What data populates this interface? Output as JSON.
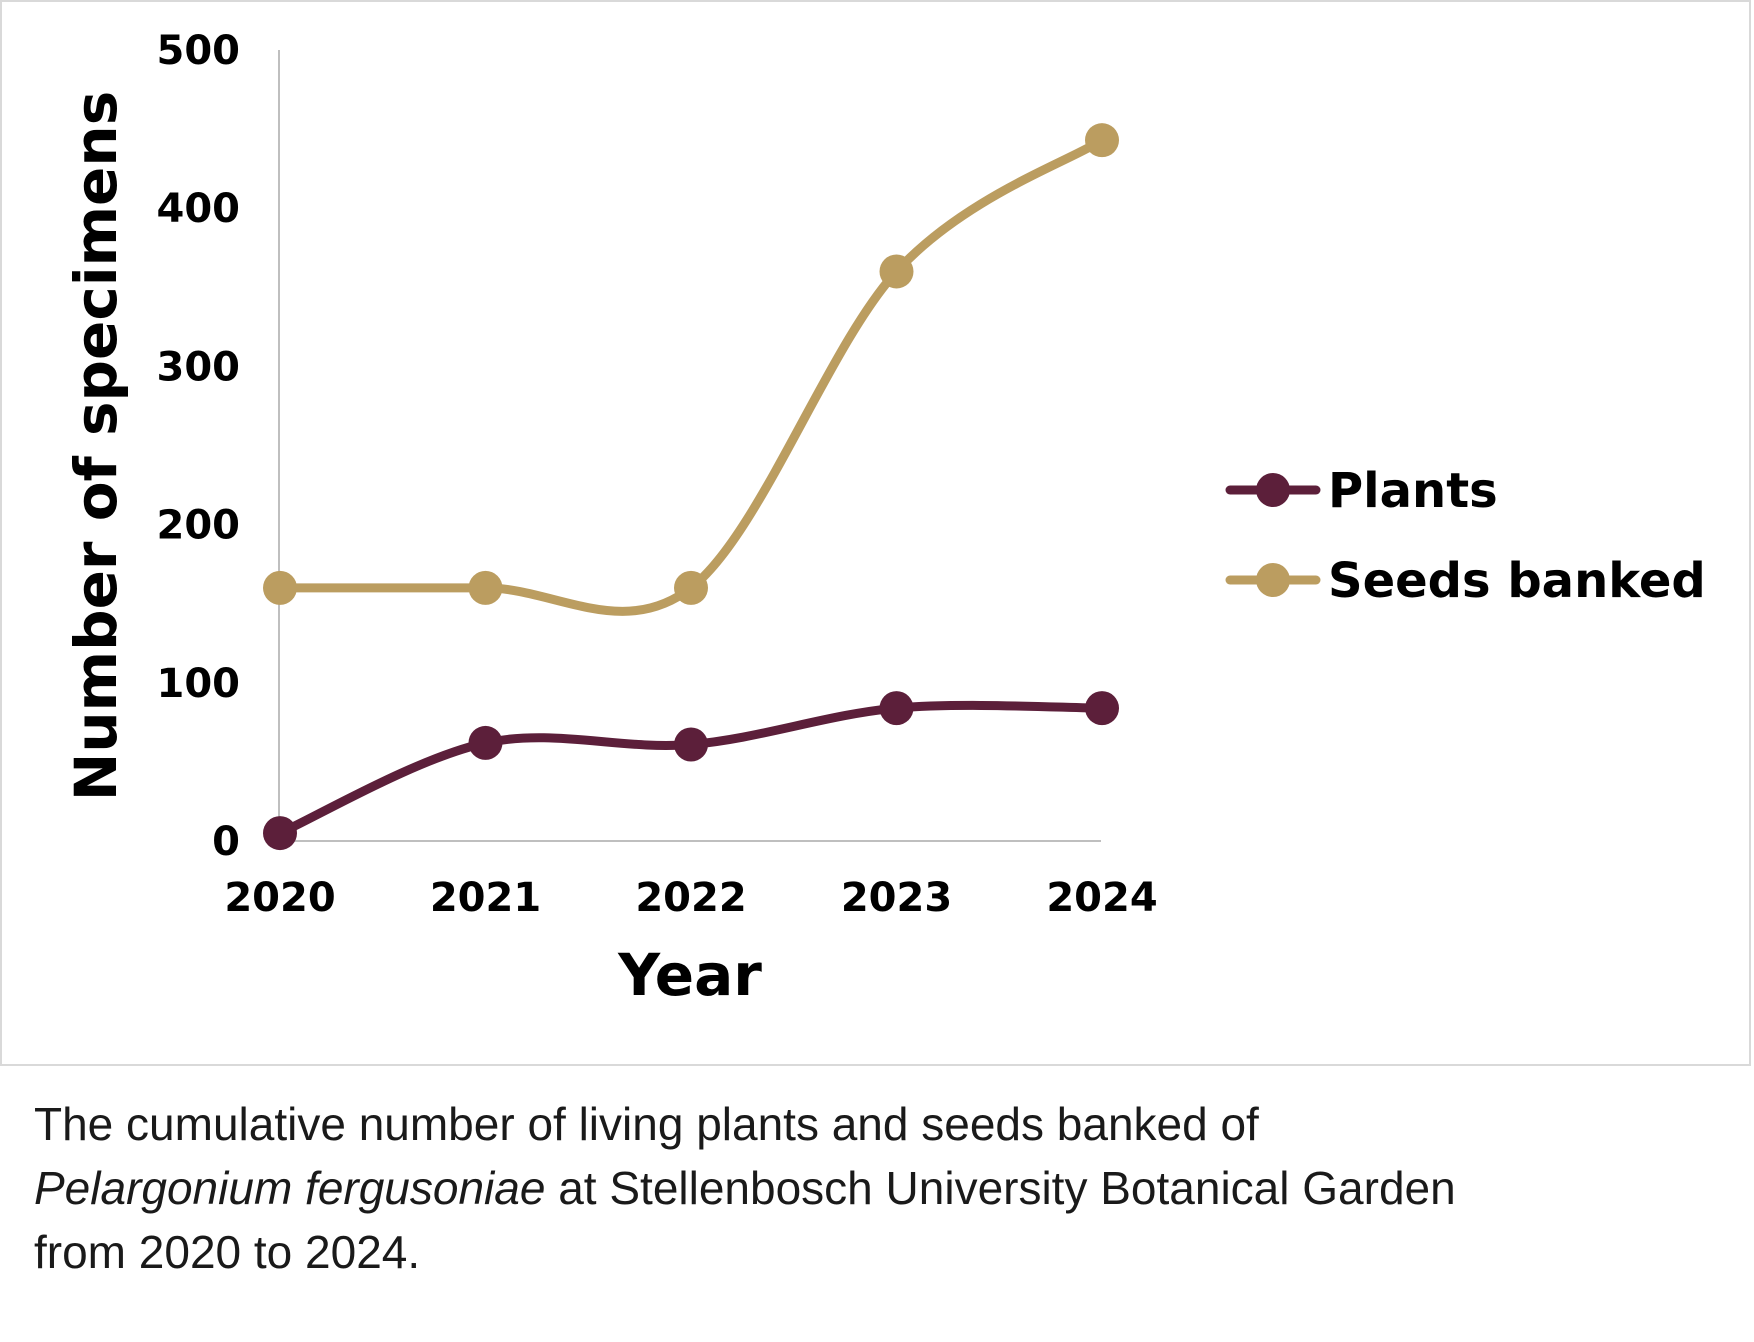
{
  "chart_data": {
    "type": "line",
    "title": "",
    "xlabel": "Year",
    "ylabel": "Number of specimens",
    "categories": [
      "2020",
      "2021",
      "2022",
      "2023",
      "2024"
    ],
    "yticks": [
      "0",
      "100",
      "200",
      "300",
      "400",
      "500"
    ],
    "ylim": [
      0,
      500
    ],
    "grid": false,
    "legend_position": "right",
    "series": [
      {
        "name": "Plants",
        "color": "#5c1f3a",
        "values": [
          5,
          62,
          61,
          84,
          84
        ]
      },
      {
        "name": "Seeds banked",
        "color": "#bb9d60",
        "values": [
          160,
          160,
          160,
          360,
          443
        ]
      }
    ]
  },
  "caption": {
    "line1": "The cumulative number of living plants and seeds banked of",
    "species": "Pelargonium fergusoniae",
    "line2_rest": " at Stellenbosch University Botanical Garden",
    "line3": "from 2020 to 2024."
  }
}
